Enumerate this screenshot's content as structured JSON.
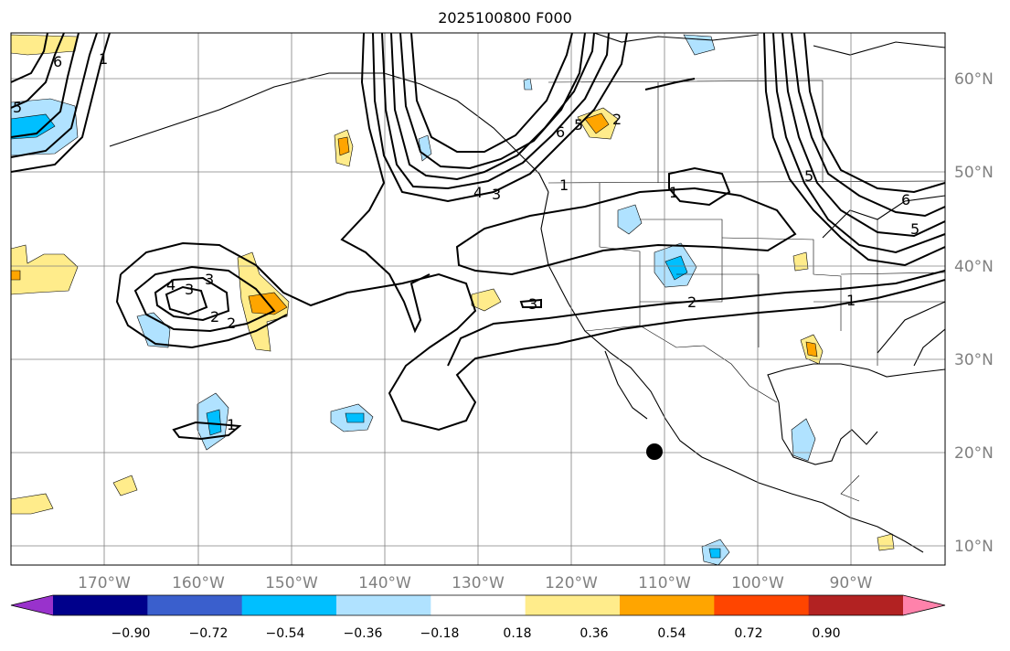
{
  "title": "2025100800 F000",
  "map": {
    "lon_labels": [
      "170°W",
      "160°W",
      "150°W",
      "140°W",
      "130°W",
      "120°W",
      "110°W",
      "100°W",
      "90°W"
    ],
    "lat_labels": [
      "60°N",
      "50°N",
      "40°N",
      "30°N",
      "20°N",
      "10°N"
    ],
    "contour_labels": [
      "6",
      "5",
      "3",
      "4",
      "3",
      "2",
      "2",
      "4",
      "3",
      "1",
      "6",
      "5",
      "2",
      "1",
      "5",
      "6",
      "5",
      "1",
      "2",
      "3",
      "1",
      "1"
    ]
  },
  "colorbar": {
    "ticks": [
      "−0.90",
      "−0.72",
      "−0.54",
      "−0.36",
      "−0.18",
      "0.18",
      "0.36",
      "0.54",
      "0.72",
      "0.90"
    ],
    "colors": [
      "#9932cc",
      "#00008b",
      "#3a5fcd",
      "#00bfff",
      "#b0e2ff",
      "#ffffff",
      "#ffec8b",
      "#ffa500",
      "#ff4500",
      "#b22222",
      "#ff82ab"
    ]
  }
}
